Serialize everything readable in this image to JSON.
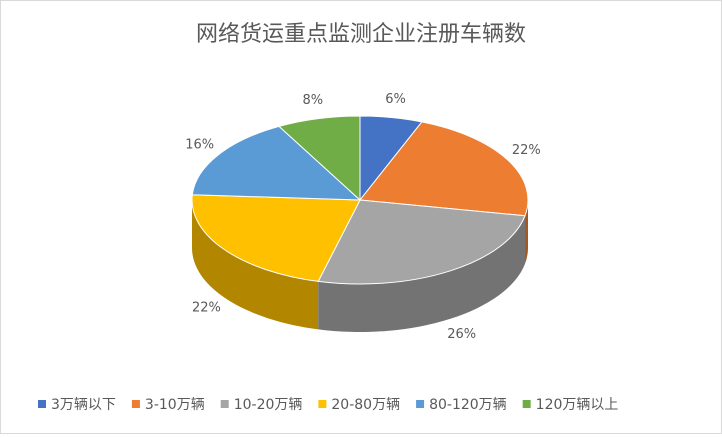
{
  "chart_data": {
    "type": "pie3d",
    "title": "网络货运重点监测企业注册车辆数",
    "categories": [
      "3万辆以下",
      "3-10万辆",
      "10-20万辆",
      "20-80万辆",
      "80-120万辆",
      "120万辆以上"
    ],
    "values": [
      6,
      22,
      26,
      22,
      16,
      8
    ],
    "value_labels": [
      "6%",
      "22%",
      "26%",
      "22%",
      "16%",
      "8%"
    ],
    "colors": [
      "#4472c4",
      "#ed7d31",
      "#a5a5a5",
      "#ffc000",
      "#5b9bd5",
      "#70ad47"
    ],
    "legend": "bottom"
  }
}
